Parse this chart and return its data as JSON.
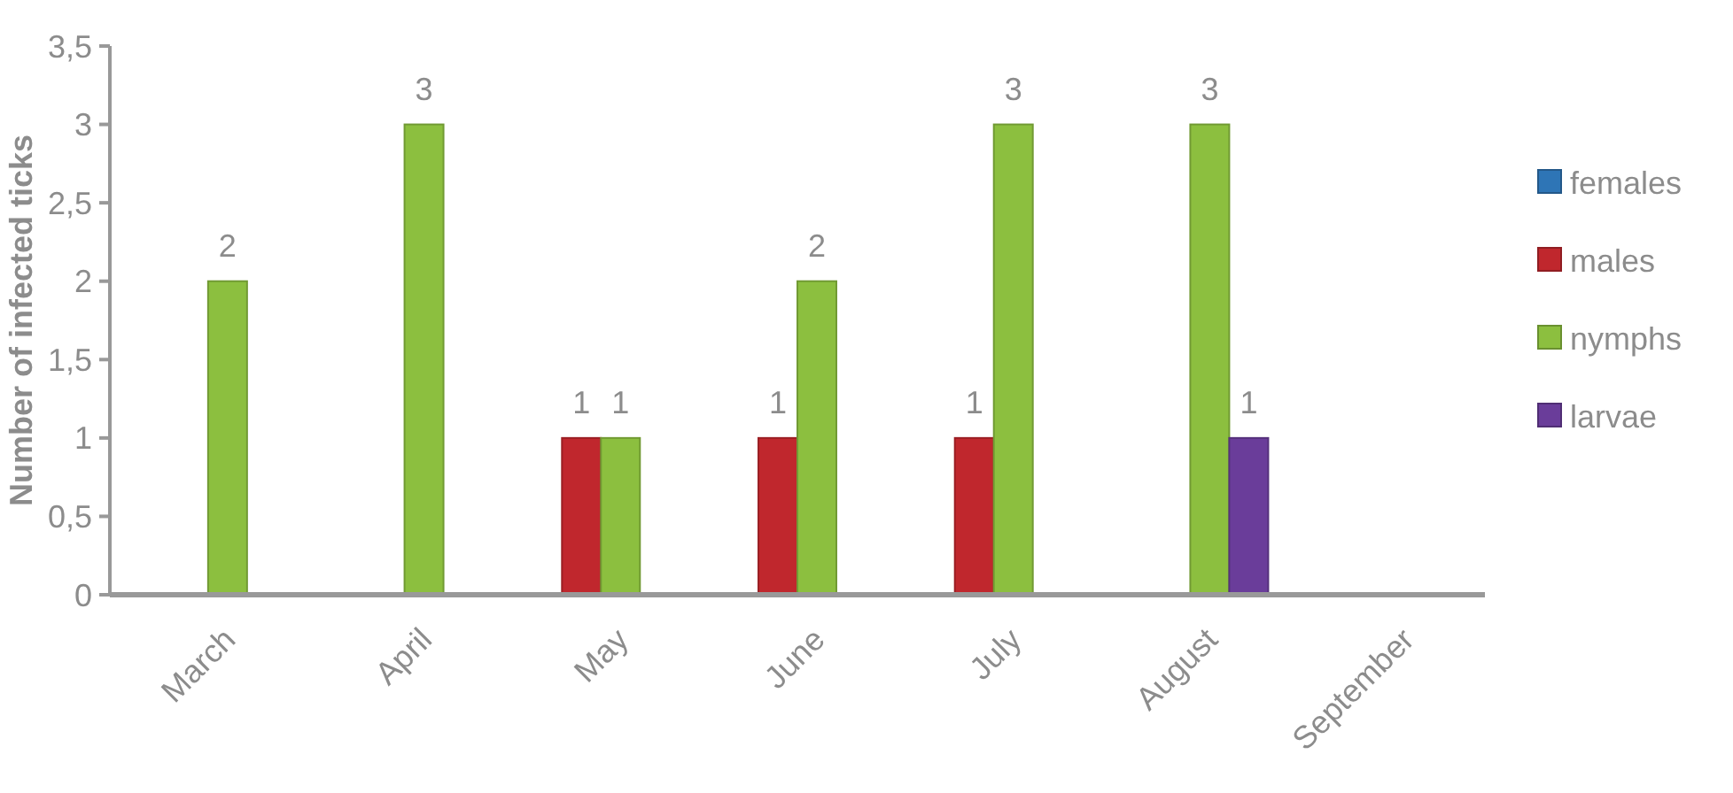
{
  "chart_data": {
    "type": "bar",
    "ylabel": "Number of infected ticks",
    "categories": [
      "March",
      "April",
      "May",
      "June",
      "July",
      "August",
      "September"
    ],
    "series": [
      {
        "name": "females",
        "color": "#2e75b6",
        "values": [
          null,
          null,
          null,
          null,
          null,
          null,
          null
        ]
      },
      {
        "name": "males",
        "color": "#c0272d",
        "values": [
          null,
          null,
          1,
          1,
          1,
          null,
          null
        ]
      },
      {
        "name": "nymphs",
        "color": "#8cbf3f",
        "values": [
          2,
          3,
          1,
          2,
          3,
          3,
          null
        ]
      },
      {
        "name": "larvae",
        "color": "#6a3d9a",
        "values": [
          null,
          null,
          null,
          null,
          null,
          1,
          null
        ]
      }
    ],
    "ylim": [
      0,
      3.5
    ],
    "yticks": [
      {
        "value": 0,
        "label": "0"
      },
      {
        "value": 0.5,
        "label": "0,5"
      },
      {
        "value": 1,
        "label": "1"
      },
      {
        "value": 1.5,
        "label": "1,5"
      },
      {
        "value": 2,
        "label": "2"
      },
      {
        "value": 2.5,
        "label": "2,5"
      },
      {
        "value": 3,
        "label": "3"
      },
      {
        "value": 3.5,
        "label": "3,5"
      }
    ],
    "data_labels": true,
    "legend": "right",
    "grid": false
  }
}
